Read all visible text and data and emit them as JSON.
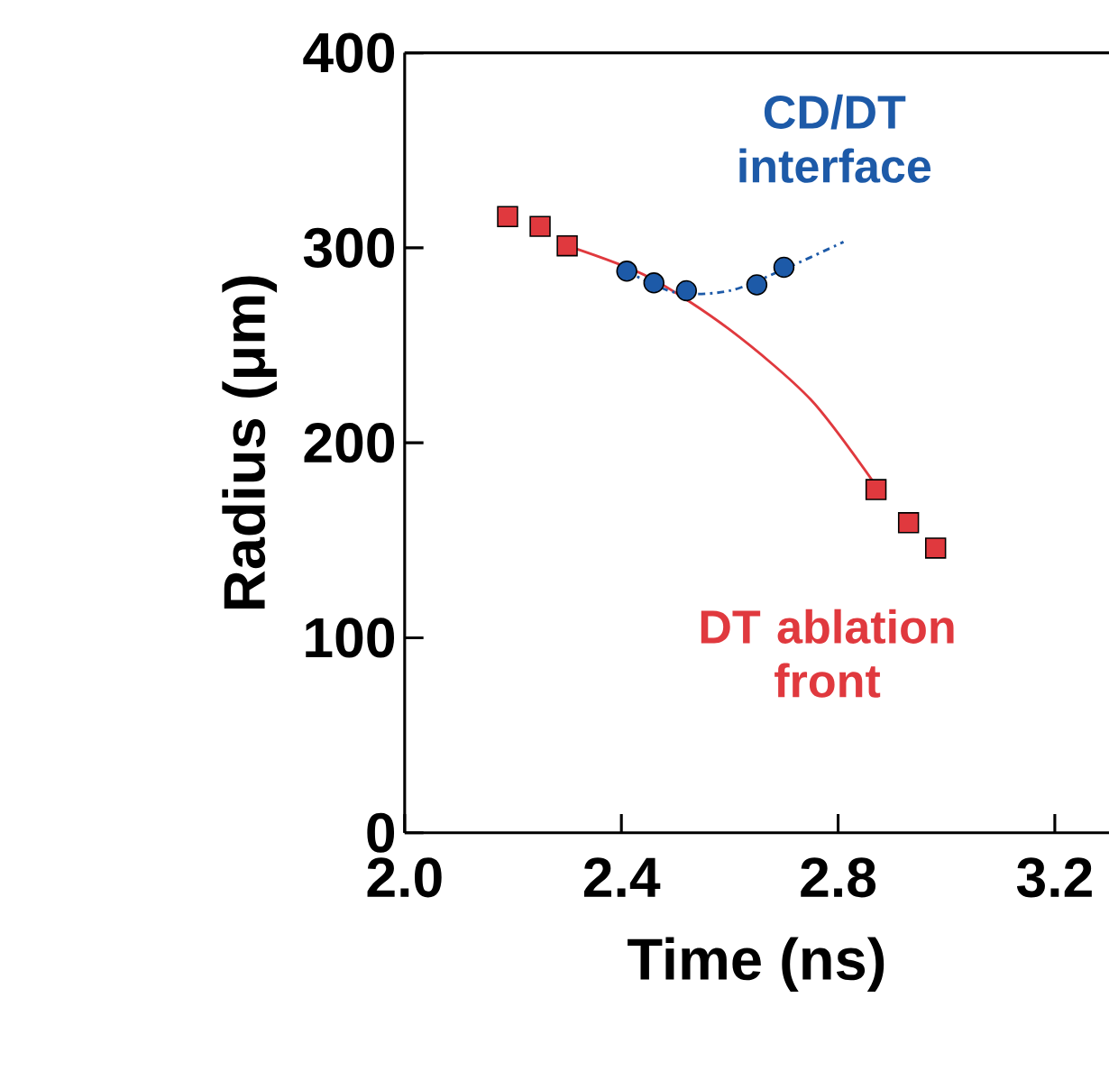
{
  "chart_data": {
    "type": "scatter",
    "xlabel": "Time (ns)",
    "ylabel": "Radius (μm)",
    "xlim": [
      2.0,
      3.3
    ],
    "xticks": [
      {
        "value": 2.0,
        "label": "2.0"
      },
      {
        "value": 2.4,
        "label": "2.4"
      },
      {
        "value": 2.8,
        "label": "2.8"
      },
      {
        "value": 3.2,
        "label": "3.2"
      }
    ],
    "ylim": [
      0,
      400
    ],
    "yticks": [
      0,
      100,
      200,
      300,
      400
    ],
    "grid": false,
    "series": [
      {
        "name": "DT ablation front",
        "marker": "square",
        "color": "#e0393e",
        "x": [
          2.19,
          2.25,
          2.3,
          2.87,
          2.93,
          2.98
        ],
        "values": [
          316,
          311,
          301,
          176,
          159,
          146
        ]
      },
      {
        "name": "CD/DT interface",
        "marker": "circle",
        "color": "#1d5aa8",
        "x": [
          2.41,
          2.46,
          2.52,
          2.65,
          2.7
        ],
        "values": [
          288,
          282,
          278,
          281,
          290
        ]
      },
      {
        "type": "line",
        "line_style": "solid",
        "color": "#e0393e",
        "x": [
          2.3,
          2.45,
          2.6,
          2.75,
          2.87
        ],
        "values": [
          301,
          285,
          258,
          222,
          178
        ]
      },
      {
        "type": "line",
        "line_style": "dashdot",
        "color": "#1d5aa8",
        "x": [
          2.41,
          2.5,
          2.6,
          2.7,
          2.81
        ],
        "values": [
          288,
          277,
          278,
          289,
          303
        ]
      }
    ]
  }
}
